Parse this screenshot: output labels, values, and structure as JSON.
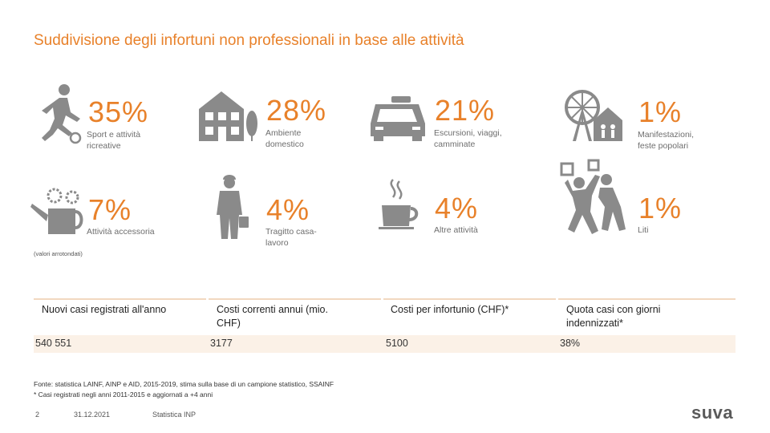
{
  "title": "Suddivisione degli infortuni non professionali in base alle attività",
  "stats": [
    {
      "pct": "35%",
      "label": "Sport e attività ricreative",
      "icon": "soccer-player-icon"
    },
    {
      "pct": "28%",
      "label": "Ambiente domestico",
      "icon": "house-icon"
    },
    {
      "pct": "21%",
      "label": "Escursioni, viaggi, camminate",
      "icon": "car-icon"
    },
    {
      "pct": "1%",
      "label": "Manifestazioni, feste popolari",
      "icon": "fair-icon"
    },
    {
      "pct": "7%",
      "label": "Attività accessoria",
      "icon": "watering-can-icon"
    },
    {
      "pct": "4%",
      "label": "Tragitto casa-lavoro",
      "icon": "commuter-icon"
    },
    {
      "pct": "4%",
      "label": "Altre attività",
      "icon": "coffee-cup-icon"
    },
    {
      "pct": "1%",
      "label": "Liti",
      "icon": "fight-icon"
    }
  ],
  "note": "(valori arrotondati)",
  "table": {
    "headers": [
      "Nuovi casi registrati all'anno",
      "Costi correnti annui (mio. CHF)",
      "Costi per infortunio (CHF)*",
      "Quota casi con giorni indennizzati*"
    ],
    "values": [
      "540 551",
      "3177",
      "5100",
      "38%"
    ]
  },
  "source": {
    "line1": "Fonte: statistica LAINF, AINP e AID, 2015-2019, stima sulla base di un campione statistico, SSAINF",
    "line2": "* Casi registrati negli anni 2011-2015 e aggiornati a +4 anni"
  },
  "footer": {
    "page": "2",
    "date": "31.12.2021",
    "name": "Statistica INP",
    "logo": "suva"
  },
  "colors": {
    "accent": "#e8812a",
    "icon": "#8a8a8a",
    "row_bg": "#fbf1e7"
  }
}
